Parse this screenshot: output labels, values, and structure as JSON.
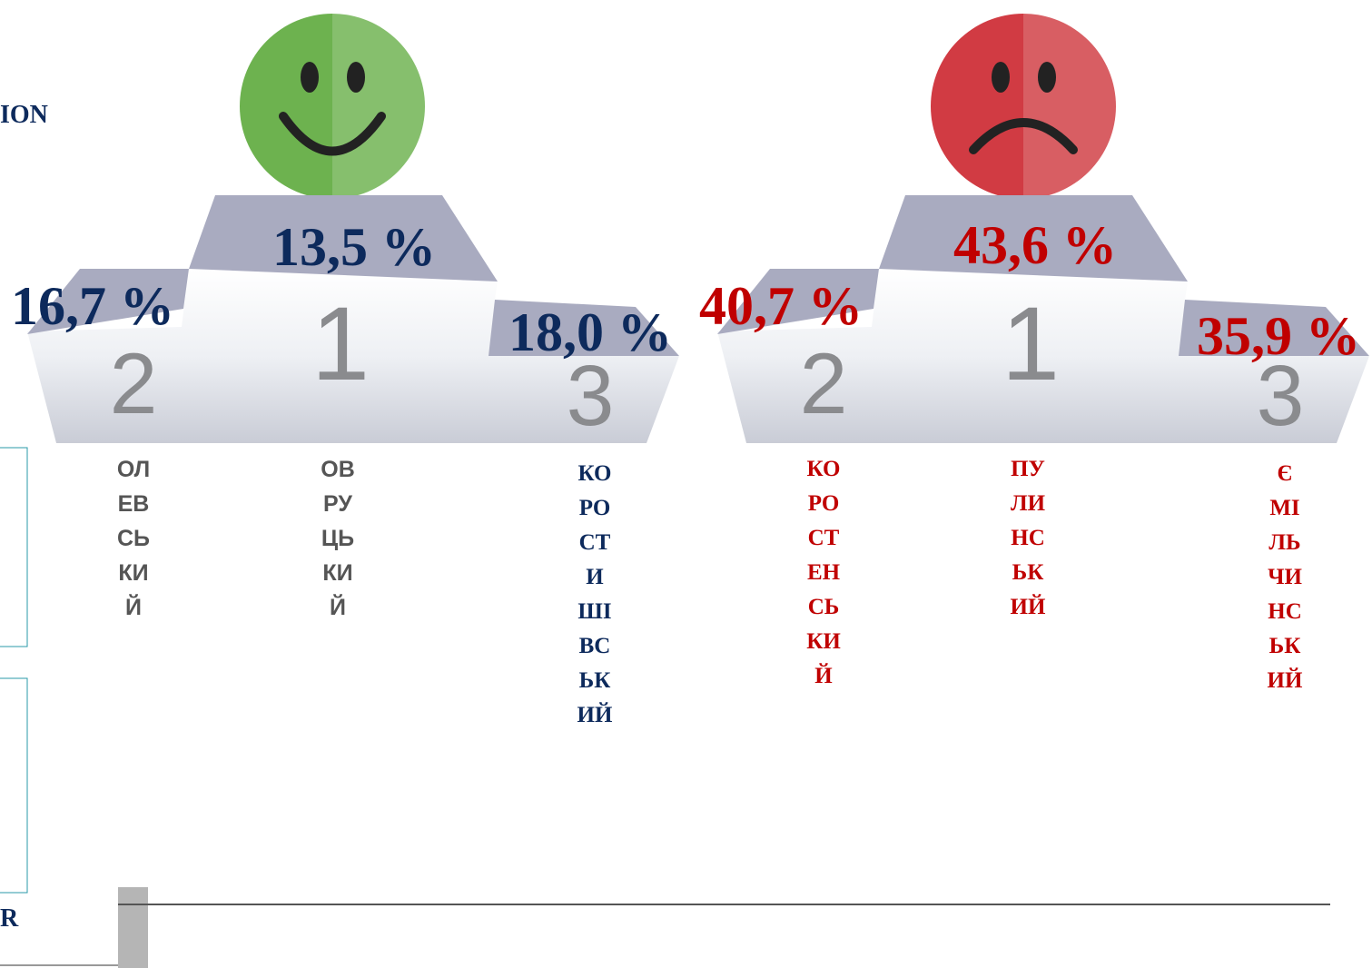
{
  "header": {
    "title": "ION"
  },
  "footer": {
    "text": "R"
  },
  "podiums": [
    {
      "places": [
        {
          "place": "2",
          "value": "16,7 %",
          "name": "ОЛЕВСЬКИЙ"
        },
        {
          "place": "1",
          "value": "13,5 %",
          "name": "ОВРУЦЬКИЙ"
        },
        {
          "place": "3",
          "value": "18,0 %",
          "name": "КОРОСТИШІВСЬКИЙ"
        }
      ]
    },
    {
      "places": [
        {
          "place": "2",
          "value": "40,7 %",
          "name": "КОРОСТЕНСЬКИЙ"
        },
        {
          "place": "1",
          "value": "43,6 %",
          "name": "ПУЛИНСЬКИЙ"
        },
        {
          "place": "3",
          "value": "35,9 %",
          "name": "ЄМІЛЬЧИНСЬКИЙ"
        }
      ]
    }
  ]
}
